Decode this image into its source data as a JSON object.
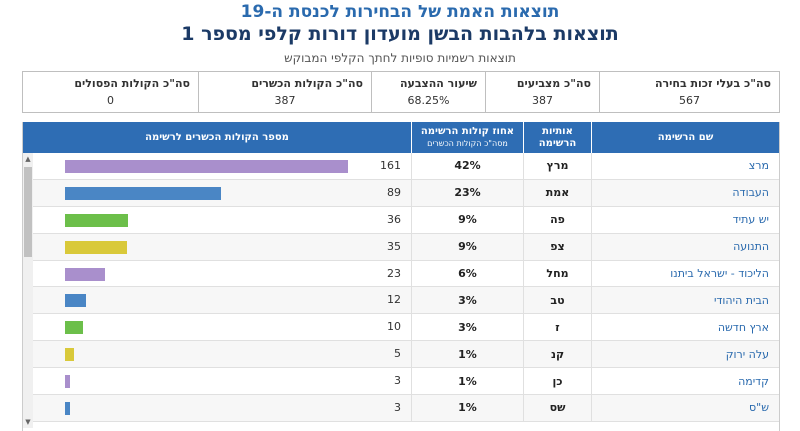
{
  "header": {
    "title1": "תוצאות האמת של הבחירות לכנסת ה-19",
    "title2": "תוצאות בלהבות הבשן מועדון דורות קלפי מספר 1",
    "title3": "תוצאות רשמיות סופיות לחתך הקלפי המבוקש"
  },
  "summary": [
    {
      "label": "סה\"כ בעלי זכות בחירה",
      "value": "567"
    },
    {
      "label": "סה\"כ מצביעים",
      "value": "387"
    },
    {
      "label": "שיעור ההצבעה",
      "value": "68.25%"
    },
    {
      "label": "סה\"כ הקולות הכשרים",
      "value": "387"
    },
    {
      "label": "סה\"כ הקולות הפסולים",
      "value": "0"
    }
  ],
  "table": {
    "headers": {
      "name": "שם הרשימה",
      "letters": "אותיות הרשימה",
      "pct": "אחוז קולות הרשימה",
      "pct_sub": "מסה\"כ הקולות הכשרים",
      "bar": "מספר הקולות הכשרים לרשימה"
    },
    "max_votes": 161,
    "rows": [
      {
        "name": "מרצ",
        "letters": "מרץ",
        "pct": "42%",
        "votes": "161",
        "v": 161,
        "color": "#a98fcc"
      },
      {
        "name": "העבודה",
        "letters": "אמת",
        "pct": "23%",
        "votes": "89",
        "v": 89,
        "color": "#4a86c5"
      },
      {
        "name": "יש עתיד",
        "letters": "פה",
        "pct": "9%",
        "votes": "36",
        "v": 36,
        "color": "#6cbf4a"
      },
      {
        "name": "התנועה",
        "letters": "צפ",
        "pct": "9%",
        "votes": "35",
        "v": 35,
        "color": "#d9c93a"
      },
      {
        "name": "הליכוד - ישראל ביתנו",
        "letters": "מחל",
        "pct": "6%",
        "votes": "23",
        "v": 23,
        "color": "#a98fcc"
      },
      {
        "name": "הבית היהודי",
        "letters": "טב",
        "pct": "3%",
        "votes": "12",
        "v": 12,
        "color": "#4a86c5"
      },
      {
        "name": "ארץ חדשה",
        "letters": "ז",
        "pct": "3%",
        "votes": "10",
        "v": 10,
        "color": "#6cbf4a"
      },
      {
        "name": "עלה ירוק",
        "letters": "קנ",
        "pct": "1%",
        "votes": "5",
        "v": 5,
        "color": "#d9c93a"
      },
      {
        "name": "קדימה",
        "letters": "כן",
        "pct": "1%",
        "votes": "3",
        "v": 3,
        "color": "#a98fcc"
      },
      {
        "name": "ש\"ס",
        "letters": "שס",
        "pct": "1%",
        "votes": "3",
        "v": 3,
        "color": "#4a86c5"
      }
    ]
  }
}
